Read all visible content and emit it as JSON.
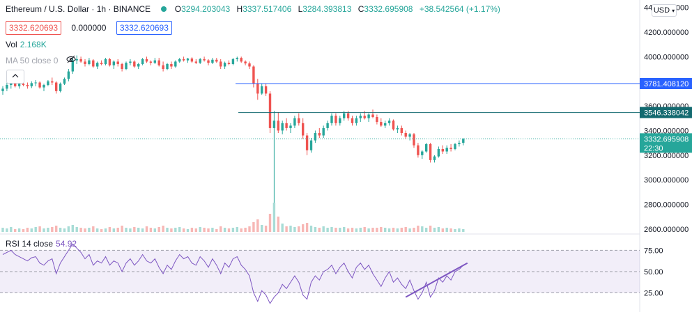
{
  "header": {
    "symbol_title": "Ethereum / U.S. Dollar · 1h · BINANCE",
    "open_key": "O",
    "open": "3294.203043",
    "high_key": "H",
    "high": "3337.517406",
    "low_key": "L",
    "low": "3284.393813",
    "close_key": "C",
    "close": "3332.695908",
    "change": "+38.542564 (+1.17%)",
    "bid": "3332.620693",
    "spread": "0.000000",
    "ask": "3332.620693",
    "currency_button": "USD"
  },
  "volume": {
    "label": "Vol",
    "value": "2.168K"
  },
  "ma": {
    "label": "MA 50 close 0"
  },
  "rsi": {
    "label": "RSI 14 close",
    "value": "54.92"
  },
  "price_axis": {
    "ticks": [
      "4400.000000",
      "4200.000000",
      "4000.000000",
      "3600.000000",
      "3400.000000",
      "3200.000000",
      "3000.000000",
      "2800.000000",
      "2600.000000"
    ],
    "line_label_1": "3781.408120",
    "line_label_2": "3546.338042",
    "last_price_label": "3332.695908",
    "countdown": "22:30"
  },
  "rsi_axis": {
    "ticks": [
      "75.00",
      "50.00",
      "25.00"
    ]
  },
  "colors": {
    "up": "#26a69a",
    "down": "#ef5350",
    "rsi": "#7e57c2",
    "hline1": "#2962ff",
    "hline2": "#136a70"
  },
  "chart_data": {
    "type": "candlestick",
    "interval": "1h",
    "price_range": [
      2560,
      4460
    ],
    "horizontal_lines": [
      3781.40812,
      3546.338042
    ],
    "last_price": 3332.695908,
    "candles_ohlc": [
      [
        3720,
        3760,
        3690,
        3740
      ],
      [
        3740,
        3790,
        3720,
        3770
      ],
      [
        3770,
        3820,
        3740,
        3790
      ],
      [
        3790,
        3810,
        3750,
        3760
      ],
      [
        3760,
        3800,
        3740,
        3780
      ],
      [
        3780,
        3800,
        3760,
        3770
      ],
      [
        3770,
        3790,
        3740,
        3760
      ],
      [
        3760,
        3800,
        3745,
        3785
      ],
      [
        3785,
        3810,
        3760,
        3790
      ],
      [
        3790,
        3800,
        3740,
        3750
      ],
      [
        3750,
        3780,
        3720,
        3770
      ],
      [
        3770,
        3810,
        3760,
        3800
      ],
      [
        3800,
        3830,
        3770,
        3790
      ],
      [
        3790,
        3800,
        3700,
        3720
      ],
      [
        3720,
        3790,
        3710,
        3780
      ],
      [
        3780,
        3830,
        3770,
        3820
      ],
      [
        3820,
        3900,
        3800,
        3880
      ],
      [
        3880,
        3990,
        3860,
        3970
      ],
      [
        3970,
        4010,
        3940,
        3980
      ],
      [
        3980,
        4000,
        3950,
        3960
      ],
      [
        3960,
        3980,
        3920,
        3940
      ],
      [
        3940,
        3990,
        3930,
        3970
      ],
      [
        3970,
        3980,
        3910,
        3920
      ],
      [
        3920,
        3960,
        3900,
        3950
      ],
      [
        3950,
        3970,
        3930,
        3940
      ],
      [
        3940,
        3990,
        3930,
        3980
      ],
      [
        3980,
        3990,
        3920,
        3930
      ],
      [
        3930,
        3970,
        3900,
        3960
      ],
      [
        3960,
        3980,
        3920,
        3940
      ],
      [
        3940,
        3950,
        3880,
        3900
      ],
      [
        3900,
        3960,
        3890,
        3950
      ],
      [
        3950,
        3980,
        3930,
        3960
      ],
      [
        3960,
        3970,
        3910,
        3920
      ],
      [
        3920,
        3950,
        3900,
        3940
      ],
      [
        3940,
        3990,
        3930,
        3980
      ],
      [
        3980,
        4000,
        3950,
        3960
      ],
      [
        3960,
        3970,
        3930,
        3950
      ],
      [
        3950,
        3990,
        3940,
        3970
      ],
      [
        3970,
        3990,
        3920,
        3930
      ],
      [
        3930,
        3960,
        3880,
        3900
      ],
      [
        3900,
        3950,
        3890,
        3940
      ],
      [
        3940,
        3960,
        3900,
        3920
      ],
      [
        3920,
        3970,
        3910,
        3960
      ],
      [
        3960,
        3990,
        3950,
        3980
      ],
      [
        3980,
        4000,
        3960,
        3970
      ],
      [
        3970,
        3990,
        3950,
        3985
      ],
      [
        3985,
        3995,
        3950,
        3960
      ],
      [
        3960,
        3980,
        3940,
        3950
      ],
      [
        3950,
        3990,
        3940,
        3980
      ],
      [
        3980,
        4000,
        3960,
        3970
      ],
      [
        3970,
        3980,
        3930,
        3950
      ],
      [
        3950,
        3990,
        3940,
        3975
      ],
      [
        3975,
        3990,
        3950,
        3960
      ],
      [
        3960,
        3980,
        3900,
        3920
      ],
      [
        3920,
        3960,
        3900,
        3950
      ],
      [
        3950,
        3970,
        3930,
        3940
      ],
      [
        3940,
        3990,
        3930,
        3980
      ],
      [
        3980,
        4000,
        3960,
        3990
      ],
      [
        3990,
        4000,
        3950,
        3960
      ],
      [
        3960,
        3970,
        3930,
        3945
      ],
      [
        3945,
        3960,
        3900,
        3920
      ],
      [
        3920,
        3930,
        3750,
        3780
      ],
      [
        3780,
        3820,
        3650,
        3700
      ],
      [
        3700,
        3780,
        3690,
        3760
      ],
      [
        3760,
        3780,
        3680,
        3700
      ],
      [
        3700,
        3720,
        3380,
        3420
      ],
      [
        3420,
        3560,
        2760,
        3480
      ],
      [
        3480,
        3550,
        3380,
        3400
      ],
      [
        3400,
        3480,
        3370,
        3460
      ],
      [
        3460,
        3500,
        3400,
        3420
      ],
      [
        3420,
        3460,
        3380,
        3440
      ],
      [
        3440,
        3520,
        3420,
        3500
      ],
      [
        3500,
        3540,
        3440,
        3460
      ],
      [
        3460,
        3500,
        3330,
        3360
      ],
      [
        3360,
        3380,
        3200,
        3240
      ],
      [
        3240,
        3340,
        3220,
        3320
      ],
      [
        3320,
        3400,
        3300,
        3380
      ],
      [
        3380,
        3420,
        3340,
        3360
      ],
      [
        3360,
        3440,
        3340,
        3420
      ],
      [
        3420,
        3480,
        3400,
        3460
      ],
      [
        3460,
        3540,
        3440,
        3520
      ],
      [
        3520,
        3540,
        3440,
        3460
      ],
      [
        3460,
        3520,
        3440,
        3500
      ],
      [
        3500,
        3560,
        3480,
        3540
      ],
      [
        3540,
        3560,
        3480,
        3500
      ],
      [
        3500,
        3520,
        3440,
        3460
      ],
      [
        3460,
        3520,
        3440,
        3500
      ],
      [
        3500,
        3540,
        3470,
        3520
      ],
      [
        3520,
        3560,
        3490,
        3500
      ],
      [
        3500,
        3540,
        3470,
        3530
      ],
      [
        3530,
        3570,
        3500,
        3510
      ],
      [
        3510,
        3530,
        3450,
        3470
      ],
      [
        3470,
        3500,
        3430,
        3440
      ],
      [
        3440,
        3480,
        3420,
        3460
      ],
      [
        3460,
        3500,
        3440,
        3480
      ],
      [
        3480,
        3490,
        3400,
        3410
      ],
      [
        3410,
        3440,
        3380,
        3420
      ],
      [
        3420,
        3440,
        3360,
        3380
      ],
      [
        3380,
        3400,
        3330,
        3350
      ],
      [
        3350,
        3380,
        3320,
        3370
      ],
      [
        3370,
        3380,
        3260,
        3280
      ],
      [
        3280,
        3300,
        3180,
        3200
      ],
      [
        3200,
        3240,
        3170,
        3230
      ],
      [
        3230,
        3300,
        3220,
        3290
      ],
      [
        3290,
        3300,
        3140,
        3160
      ],
      [
        3160,
        3200,
        3140,
        3190
      ],
      [
        3190,
        3270,
        3180,
        3250
      ],
      [
        3250,
        3280,
        3210,
        3230
      ],
      [
        3230,
        3280,
        3210,
        3260
      ],
      [
        3260,
        3290,
        3230,
        3250
      ],
      [
        3250,
        3300,
        3240,
        3290
      ],
      [
        3290,
        3320,
        3270,
        3300
      ],
      [
        3300,
        3340,
        3280,
        3330
      ]
    ],
    "volume": [
      6,
      5,
      7,
      4,
      5,
      4,
      6,
      5,
      7,
      8,
      5,
      6,
      7,
      9,
      6,
      5,
      8,
      10,
      7,
      6,
      5,
      6,
      8,
      5,
      4,
      5,
      7,
      5,
      6,
      9,
      6,
      5,
      7,
      6,
      5,
      8,
      6,
      5,
      7,
      9,
      6,
      5,
      6,
      7,
      5,
      4,
      6,
      5,
      7,
      6,
      5,
      6,
      4,
      8,
      6,
      5,
      6,
      7,
      5,
      6,
      8,
      14,
      18,
      10,
      9,
      26,
      42,
      22,
      12,
      8,
      9,
      7,
      8,
      11,
      13,
      9,
      7,
      6,
      8,
      6,
      7,
      6,
      6,
      7,
      5,
      6,
      5,
      6,
      7,
      5,
      6,
      6,
      7,
      6,
      5,
      6,
      5,
      6,
      7,
      5,
      6,
      9,
      8,
      6,
      9,
      6,
      7,
      5,
      6,
      5,
      4,
      5,
      4
    ],
    "rsi_range": [
      12,
      84
    ],
    "rsi_levels": [
      70,
      50,
      30
    ],
    "rsi_values": [
      66,
      68,
      70,
      66,
      64,
      62,
      60,
      63,
      64,
      58,
      56,
      60,
      62,
      48,
      58,
      64,
      70,
      76,
      72,
      68,
      62,
      66,
      56,
      60,
      58,
      64,
      56,
      60,
      58,
      50,
      58,
      62,
      56,
      60,
      66,
      60,
      58,
      62,
      54,
      48,
      56,
      52,
      60,
      66,
      62,
      64,
      58,
      56,
      64,
      60,
      54,
      62,
      56,
      48,
      58,
      54,
      62,
      64,
      56,
      52,
      46,
      30,
      22,
      32,
      28,
      20,
      26,
      30,
      38,
      34,
      40,
      46,
      40,
      28,
      24,
      40,
      46,
      42,
      50,
      52,
      56,
      48,
      54,
      58,
      50,
      44,
      54,
      58,
      52,
      56,
      48,
      42,
      36,
      44,
      50,
      40,
      44,
      38,
      34,
      42,
      32,
      24,
      30,
      40,
      26,
      32,
      44,
      40,
      46,
      42,
      50,
      52,
      56
    ],
    "trendline_rsi": [
      [
        98,
        26
      ],
      [
        113,
        58
      ]
    ]
  }
}
